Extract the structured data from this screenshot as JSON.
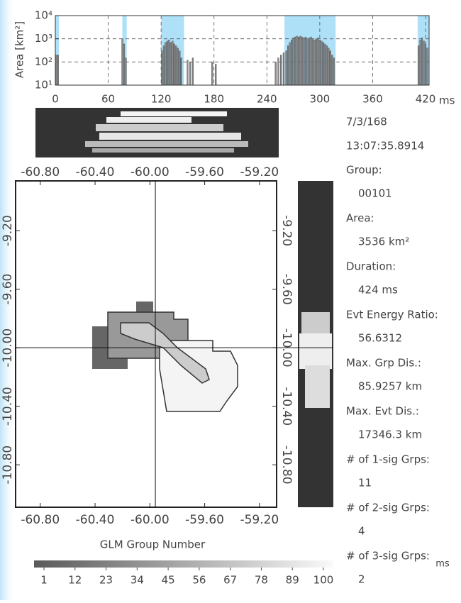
{
  "chart_data": [
    {
      "type": "bar",
      "y_label": "Area [km²]",
      "x_unit": "ms",
      "log_scale": true,
      "grid": true,
      "color": "#8a8a8a",
      "highlight_color": "#aee0f8",
      "highlight_spans": [
        [
          0,
          4
        ],
        [
          76,
          81
        ],
        [
          120,
          146
        ],
        [
          260,
          318
        ],
        [
          411,
          424
        ]
      ],
      "xlim": [
        0,
        424
      ],
      "xticks": [
        0,
        60,
        120,
        180,
        240,
        300,
        360,
        420
      ],
      "ylim": [
        10,
        10000
      ],
      "yticks": [
        {
          "value": 10,
          "label": "10¹"
        },
        {
          "value": 100,
          "label": "10²"
        },
        {
          "value": 1000,
          "label": "10³"
        },
        {
          "value": 10000,
          "label": "10⁴"
        }
      ],
      "x": [
        1,
        3,
        76,
        78,
        80,
        121,
        123,
        125,
        127,
        129,
        131,
        133,
        135,
        137,
        139,
        141,
        143,
        150,
        153,
        156,
        178,
        182,
        250,
        253,
        256,
        259,
        262,
        264,
        266,
        268,
        270,
        272,
        274,
        276,
        278,
        280,
        282,
        284,
        286,
        288,
        290,
        292,
        294,
        296,
        298,
        300,
        302,
        304,
        306,
        308,
        310,
        312,
        314,
        316,
        412,
        414,
        416,
        418,
        420,
        422
      ],
      "values": [
        200,
        200,
        1000,
        600,
        150,
        300,
        500,
        700,
        800,
        900,
        700,
        800,
        600,
        500,
        400,
        300,
        150,
        120,
        100,
        150,
        100,
        80,
        100,
        150,
        200,
        250,
        300,
        500,
        700,
        900,
        1100,
        1200,
        1300,
        1200,
        1300,
        1200,
        1100,
        1200,
        1000,
        1100,
        1200,
        1000,
        900,
        1000,
        1100,
        900,
        800,
        700,
        600,
        500,
        400,
        300,
        200,
        150,
        500,
        900,
        1100,
        800,
        600,
        400
      ]
    },
    {
      "type": "map",
      "x_label": "GLM Group Number",
      "xlim": [
        -60.98,
        -59.075
      ],
      "xticks": [
        {
          "value": -60.8,
          "label": "-60.80"
        },
        {
          "value": -60.4,
          "label": "-60.40"
        },
        {
          "value": -60.0,
          "label": "-60.00"
        },
        {
          "value": -59.6,
          "label": "-59.60"
        },
        {
          "value": -59.2,
          "label": "-59.20"
        }
      ],
      "ylim": [
        -8.86,
        -11.09
      ],
      "yticks": [
        {
          "value": -9.2,
          "label": "-9.20"
        },
        {
          "value": -9.6,
          "label": "-9.60"
        },
        {
          "value": -10.0,
          "label": "-10.00"
        },
        {
          "value": -10.4,
          "label": "-10.40"
        },
        {
          "value": -10.8,
          "label": "-10.80"
        }
      ],
      "crosshair": [
        -59.96,
        -10.0
      ],
      "colorbar_range": [
        1,
        100
      ],
      "colorbar_ticks": [
        1,
        12,
        23,
        34,
        45,
        56,
        67,
        78,
        89,
        100
      ],
      "colorbar_unit": "ms"
    }
  ],
  "info": {
    "date": "7/3/168",
    "time": "13:07:35.8914",
    "fields": [
      {
        "label": "Group:",
        "value": "00101"
      },
      {
        "label": "Area:",
        "value": "3536 km²"
      },
      {
        "label": "Duration:",
        "value": "424 ms"
      },
      {
        "label": "Evt Energy Ratio:",
        "value": "56.6312"
      },
      {
        "label": "Max. Grp Dis.:",
        "value": "85.9257 km"
      },
      {
        "label": "Max. Evt Dis.:",
        "value": "17346.3 km"
      },
      {
        "label": "# of 1-sig Grps:",
        "value": "11"
      },
      {
        "label": "# of 2-sig Grps:",
        "value": "4"
      },
      {
        "label": "# of 3-sig Grps:",
        "value": "2"
      }
    ]
  }
}
